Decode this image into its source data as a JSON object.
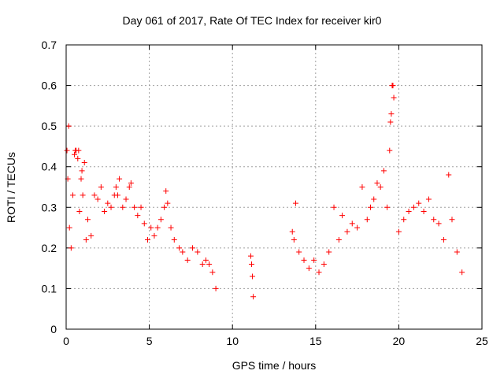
{
  "chart_data": {
    "type": "scatter",
    "title": "Day 061 of 2017, Rate Of TEC Index for receiver kir0",
    "xlabel": "GPS time / hours",
    "ylabel": "ROTI / TECUs",
    "xlim": [
      0,
      25
    ],
    "ylim": [
      0,
      0.7
    ],
    "xticks": [
      0,
      5,
      10,
      15,
      20,
      25
    ],
    "yticks": [
      0,
      0.1,
      0.2,
      0.3,
      0.4,
      0.5,
      0.6,
      0.7
    ],
    "xtick_labels": [
      "0",
      "5",
      "10",
      "15",
      "20",
      "25"
    ],
    "ytick_labels": [
      "0",
      "0.1",
      "0.2",
      "0.3",
      "0.4",
      "0.5",
      "0.6",
      "0.7"
    ],
    "grid": true,
    "marker": "+",
    "color": "#ff0000",
    "series": [
      {
        "name": "ROTI",
        "points": [
          [
            0.05,
            0.44
          ],
          [
            0.1,
            0.37
          ],
          [
            0.15,
            0.5
          ],
          [
            0.2,
            0.25
          ],
          [
            0.3,
            0.2
          ],
          [
            0.4,
            0.33
          ],
          [
            0.5,
            0.43
          ],
          [
            0.55,
            0.44
          ],
          [
            0.6,
            0.44
          ],
          [
            0.7,
            0.42
          ],
          [
            0.75,
            0.44
          ],
          [
            0.8,
            0.29
          ],
          [
            0.9,
            0.37
          ],
          [
            0.95,
            0.39
          ],
          [
            1.0,
            0.33
          ],
          [
            1.1,
            0.41
          ],
          [
            1.2,
            0.22
          ],
          [
            1.3,
            0.27
          ],
          [
            1.5,
            0.23
          ],
          [
            1.7,
            0.33
          ],
          [
            1.9,
            0.32
          ],
          [
            2.1,
            0.35
          ],
          [
            2.3,
            0.29
          ],
          [
            2.5,
            0.31
          ],
          [
            2.7,
            0.3
          ],
          [
            2.9,
            0.33
          ],
          [
            3.0,
            0.35
          ],
          [
            3.1,
            0.33
          ],
          [
            3.2,
            0.37
          ],
          [
            3.4,
            0.3
          ],
          [
            3.6,
            0.32
          ],
          [
            3.8,
            0.35
          ],
          [
            3.9,
            0.36
          ],
          [
            4.1,
            0.3
          ],
          [
            4.3,
            0.28
          ],
          [
            4.5,
            0.3
          ],
          [
            4.7,
            0.26
          ],
          [
            4.9,
            0.22
          ],
          [
            5.1,
            0.25
          ],
          [
            5.3,
            0.23
          ],
          [
            5.5,
            0.25
          ],
          [
            5.7,
            0.27
          ],
          [
            5.9,
            0.3
          ],
          [
            6.0,
            0.34
          ],
          [
            6.1,
            0.31
          ],
          [
            6.3,
            0.25
          ],
          [
            6.5,
            0.22
          ],
          [
            6.8,
            0.2
          ],
          [
            7.0,
            0.19
          ],
          [
            7.3,
            0.17
          ],
          [
            7.6,
            0.2
          ],
          [
            7.9,
            0.19
          ],
          [
            8.2,
            0.16
          ],
          [
            8.4,
            0.17
          ],
          [
            8.6,
            0.16
          ],
          [
            8.8,
            0.14
          ],
          [
            9.0,
            0.1
          ],
          [
            11.1,
            0.18
          ],
          [
            11.15,
            0.16
          ],
          [
            11.2,
            0.13
          ],
          [
            11.25,
            0.08
          ],
          [
            13.6,
            0.24
          ],
          [
            13.7,
            0.22
          ],
          [
            13.8,
            0.31
          ],
          [
            14.0,
            0.19
          ],
          [
            14.3,
            0.17
          ],
          [
            14.6,
            0.15
          ],
          [
            14.9,
            0.17
          ],
          [
            15.2,
            0.14
          ],
          [
            15.5,
            0.16
          ],
          [
            15.8,
            0.19
          ],
          [
            16.1,
            0.3
          ],
          [
            16.4,
            0.22
          ],
          [
            16.6,
            0.28
          ],
          [
            16.9,
            0.24
          ],
          [
            17.2,
            0.26
          ],
          [
            17.5,
            0.25
          ],
          [
            17.8,
            0.35
          ],
          [
            18.1,
            0.27
          ],
          [
            18.3,
            0.3
          ],
          [
            18.5,
            0.32
          ],
          [
            18.7,
            0.36
          ],
          [
            18.9,
            0.35
          ],
          [
            19.1,
            0.39
          ],
          [
            19.3,
            0.3
          ],
          [
            19.45,
            0.44
          ],
          [
            19.5,
            0.51
          ],
          [
            19.55,
            0.53
          ],
          [
            19.6,
            0.6
          ],
          [
            19.65,
            0.6
          ],
          [
            19.7,
            0.57
          ],
          [
            20.0,
            0.24
          ],
          [
            20.3,
            0.27
          ],
          [
            20.6,
            0.29
          ],
          [
            20.9,
            0.3
          ],
          [
            21.2,
            0.31
          ],
          [
            21.5,
            0.29
          ],
          [
            21.8,
            0.32
          ],
          [
            22.1,
            0.27
          ],
          [
            22.4,
            0.26
          ],
          [
            22.7,
            0.22
          ],
          [
            23.0,
            0.38
          ],
          [
            23.2,
            0.27
          ],
          [
            23.5,
            0.19
          ],
          [
            23.8,
            0.14
          ]
        ]
      }
    ]
  }
}
